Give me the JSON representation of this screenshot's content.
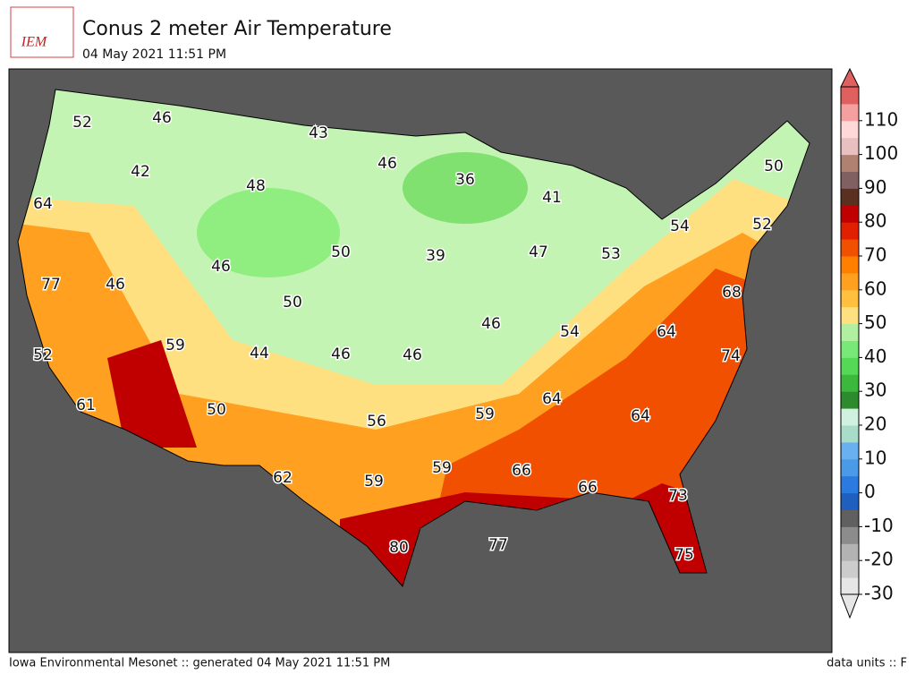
{
  "header": {
    "logo": "IEM",
    "title": "Conus 2 meter Air Temperature",
    "subtitle": "04 May 2021 11:51 PM"
  },
  "map_labels": [
    52,
    46,
    43,
    46,
    36,
    50,
    42,
    48,
    64,
    41,
    54,
    52,
    77,
    46,
    46,
    50,
    39,
    47,
    53,
    50,
    68,
    52,
    59,
    44,
    46,
    46,
    46,
    54,
    64,
    74,
    61,
    50,
    56,
    59,
    64,
    64,
    62,
    59,
    59,
    66,
    66,
    73,
    80,
    77,
    75
  ],
  "colorbar": {
    "lim": [
      -30,
      120
    ],
    "ticks": [
      -30,
      -20,
      -10,
      0,
      10,
      20,
      30,
      40,
      50,
      60,
      70,
      80,
      90,
      100,
      110
    ],
    "colors": [
      "#e6e6e6",
      "#cccccc",
      "#b3b3b3",
      "#8c8c8c",
      "#606060",
      "#1f5fbf",
      "#2a7ae0",
      "#4a9ae8",
      "#68b0f0",
      "#a8dcc8",
      "#d0f0e0",
      "#2d8a2d",
      "#3cb83c",
      "#55d855",
      "#78e878",
      "#b0f0a0",
      "#ffe080",
      "#ffc040",
      "#ffa020",
      "#ff8000",
      "#f05000",
      "#e02000",
      "#c00000",
      "#5a3020",
      "#806060",
      "#b08070",
      "#e8c0c0",
      "#ffd8d8",
      "#f4a0a0",
      "#e06060"
    ]
  },
  "footer": {
    "left": "Iowa Environmental Mesonet :: generated 04 May 2021 11:51 PM",
    "right": "data units :: F"
  }
}
